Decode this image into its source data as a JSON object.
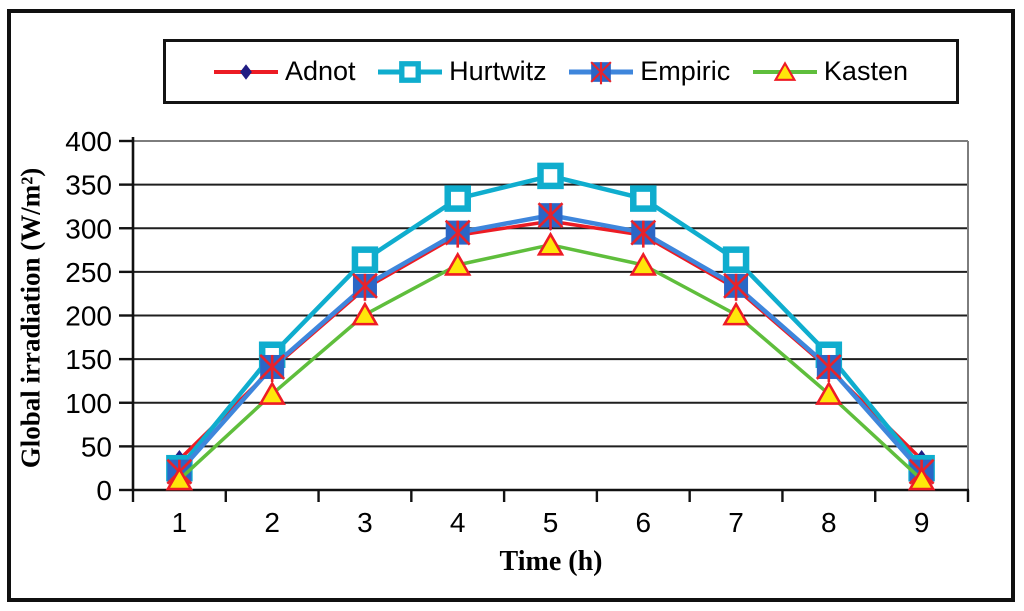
{
  "chart_data": {
    "type": "line",
    "title": "",
    "xlabel": "Time (h)",
    "ylabel": "Global irradiation (W/m²)",
    "categories": [
      "1",
      "2",
      "3",
      "4",
      "5",
      "6",
      "7",
      "8",
      "9"
    ],
    "yticks": [
      0,
      50,
      100,
      150,
      200,
      250,
      300,
      350,
      400
    ],
    "ylim": [
      0,
      400
    ],
    "grid": "horizontal",
    "legend_position": "top",
    "axis_color": "#111111",
    "grid_color": "#1f1f1f",
    "plot_border_color": "#7d7d7d",
    "tick_label_color": "#000000",
    "series": [
      {
        "name": "Adnot",
        "color": "#EC1C24",
        "line_width": 3.5,
        "marker": "diamond",
        "marker_color": "#1F1C83",
        "values": [
          35,
          139,
          231,
          292,
          308,
          292,
          231,
          139,
          35
        ]
      },
      {
        "name": "Hurtwitz",
        "color": "#0FADCE",
        "line_width": 4.5,
        "marker": "open-square",
        "marker_color": "#0FADCE",
        "marker_fill": "#FFFFFF",
        "values": [
          25,
          155,
          264,
          334,
          360,
          334,
          264,
          155,
          25
        ]
      },
      {
        "name": "Empiric",
        "color": "#3E86DC",
        "line_width": 4.5,
        "marker": "square-x",
        "marker_color": "#2B66C6",
        "marker_x_color": "#E8232B",
        "values": [
          21,
          141,
          234,
          295,
          315,
          295,
          234,
          141,
          21
        ]
      },
      {
        "name": "Kasten",
        "color": "#5FBE3C",
        "line_width": 3.5,
        "marker": "triangle",
        "marker_color": "#FFE60A",
        "marker_edge": "#EE1C25",
        "values": [
          12,
          110,
          201,
          258,
          281,
          258,
          201,
          110,
          12
        ]
      }
    ]
  },
  "legend": {
    "entries": [
      {
        "label": "Adnot"
      },
      {
        "label": "Hurtwitz"
      },
      {
        "label": "Empiric"
      },
      {
        "label": "Kasten"
      }
    ]
  }
}
